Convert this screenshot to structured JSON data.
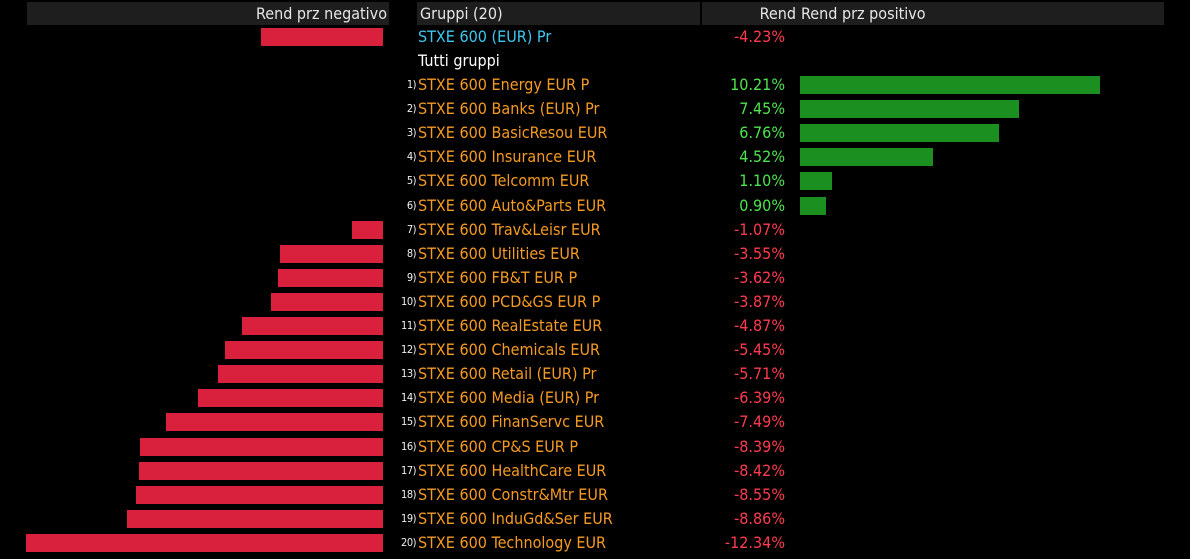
{
  "header": {
    "negative_label": "Rend prz negativo",
    "group_label": "Gruppi (20)",
    "return_label": "Rend",
    "positive_label": "Rend prz positivo"
  },
  "benchmark": {
    "name": "STXE 600 (EUR) Pr",
    "return_text": "-4.23%",
    "return_value": -4.23
  },
  "section_label": "Tutti gruppi",
  "colors": {
    "background": "#000000",
    "header_background": "#1e1e1e",
    "negative_bar": "#d9213d",
    "positive_bar": "#1b8f1f",
    "positive_text": "#4ee44e",
    "negative_text": "#ff3b4e",
    "group_text": "#f59a23",
    "benchmark_text": "#3ec8f0"
  },
  "chart_data": {
    "type": "bar",
    "categories": [
      "STXE 600 Energy EUR P",
      "STXE 600 Banks (EUR) Pr",
      "STXE 600 BasicResou EUR",
      "STXE 600 Insurance EUR",
      "STXE 600 Telcomm EUR",
      "STXE 600 Auto&Parts EUR",
      "STXE 600 Trav&Leisr EUR",
      "STXE 600 Utilities EUR",
      "STXE 600 FB&T EUR P",
      "STXE 600 PCD&GS EUR P",
      "STXE 600 RealEstate EUR",
      "STXE 600 Chemicals EUR",
      "STXE 600 Retail (EUR) Pr",
      "STXE 600 Media (EUR) Pr",
      "STXE 600 FinanServc EUR",
      "STXE 600 CP&S EUR P",
      "STXE 600 HealthCare EUR",
      "STXE 600 Constr&Mtr EUR",
      "STXE 600 InduGd&Ser EUR",
      "STXE 600 Technology EUR"
    ],
    "indices": [
      "1)",
      "2)",
      "3)",
      "4)",
      "5)",
      "6)",
      "7)",
      "8)",
      "9)",
      "10)",
      "11)",
      "12)",
      "13)",
      "14)",
      "15)",
      "16)",
      "17)",
      "18)",
      "19)",
      "20)"
    ],
    "values": [
      10.21,
      7.45,
      6.76,
      4.52,
      1.1,
      0.9,
      -1.07,
      -3.55,
      -3.62,
      -3.87,
      -4.87,
      -5.45,
      -5.71,
      -6.39,
      -7.49,
      -8.39,
      -8.42,
      -8.55,
      -8.86,
      -12.34
    ],
    "value_labels": [
      "10.21%",
      "7.45%",
      "6.76%",
      "4.52%",
      "1.10%",
      "0.90%",
      "-1.07%",
      "-3.55%",
      "-3.62%",
      "-3.87%",
      "-4.87%",
      "-5.45%",
      "-5.71%",
      "-6.39%",
      "-7.49%",
      "-8.39%",
      "-8.42%",
      "-8.55%",
      "-8.86%",
      "-12.34%"
    ],
    "orientation": "horizontal-diverging",
    "negative_range": [
      -12.34,
      0
    ],
    "positive_range": [
      0,
      10.21
    ]
  }
}
